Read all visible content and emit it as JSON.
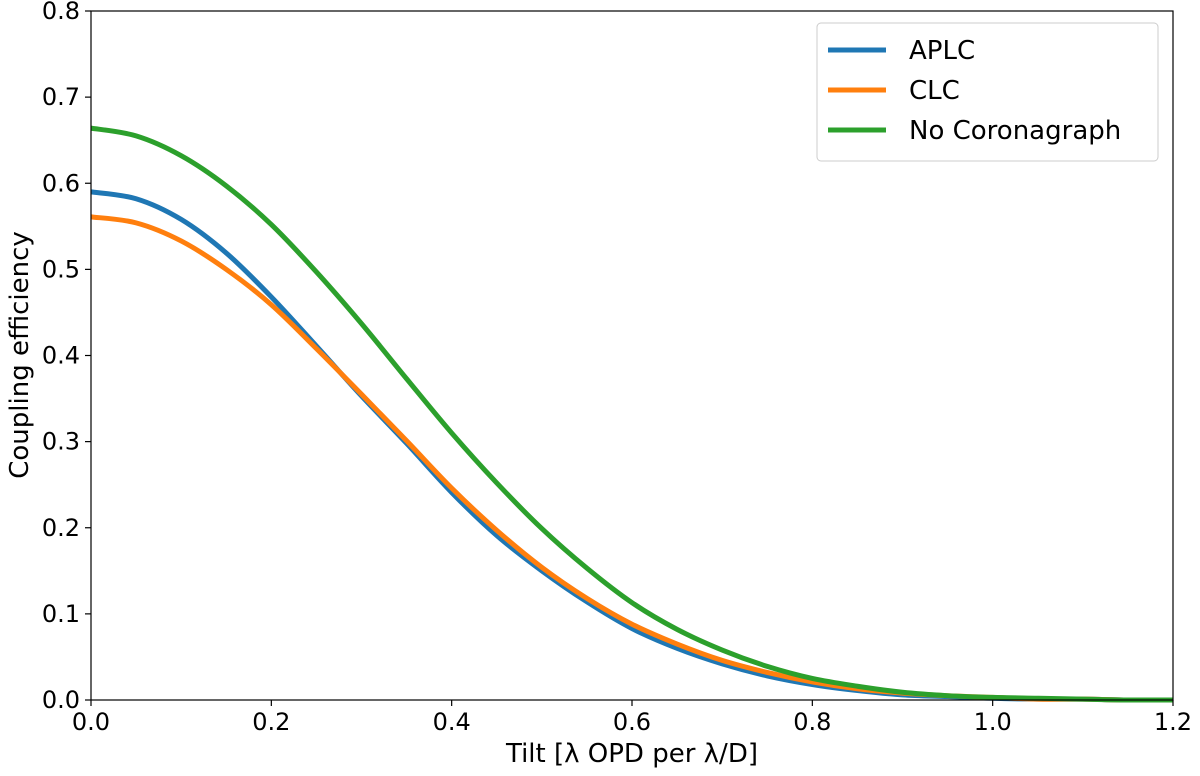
{
  "chart_data": {
    "type": "line",
    "title": "",
    "xlabel": "Tilt [λ OPD per λ/D]",
    "ylabel": "Coupling efficiency",
    "xlim": [
      0.0,
      1.2
    ],
    "ylim": [
      0.0,
      0.8
    ],
    "xticks": [
      "0.0",
      "0.2",
      "0.4",
      "0.6",
      "0.8",
      "1.0",
      "1.2"
    ],
    "yticks": [
      "0.0",
      "0.1",
      "0.2",
      "0.3",
      "0.4",
      "0.5",
      "0.6",
      "0.7",
      "0.8"
    ],
    "grid": false,
    "legend_position": "top-right",
    "x": [
      0.0,
      0.05,
      0.1,
      0.15,
      0.2,
      0.25,
      0.3,
      0.35,
      0.4,
      0.45,
      0.5,
      0.55,
      0.6,
      0.65,
      0.7,
      0.75,
      0.8,
      0.85,
      0.9,
      0.95,
      1.0,
      1.05,
      1.1,
      1.15,
      1.2
    ],
    "series": [
      {
        "name": "APLC",
        "color": "#1f77b4",
        "values": [
          0.59,
          0.582,
          0.558,
          0.519,
          0.468,
          0.411,
          0.353,
          0.298,
          0.241,
          0.191,
          0.15,
          0.114,
          0.083,
          0.06,
          0.042,
          0.028,
          0.018,
          0.011,
          0.006,
          0.004,
          0.002,
          0.001,
          0.001,
          0.0,
          0.0
        ]
      },
      {
        "name": "CLC",
        "color": "#ff7f0e",
        "values": [
          0.561,
          0.554,
          0.533,
          0.5,
          0.459,
          0.408,
          0.355,
          0.301,
          0.246,
          0.197,
          0.154,
          0.118,
          0.088,
          0.065,
          0.046,
          0.032,
          0.021,
          0.013,
          0.008,
          0.005,
          0.003,
          0.001,
          0.001,
          0.0,
          0.0
        ]
      },
      {
        "name": "No Coronagraph",
        "color": "#2ca02c",
        "values": [
          0.664,
          0.655,
          0.632,
          0.597,
          0.552,
          0.497,
          0.437,
          0.373,
          0.31,
          0.252,
          0.199,
          0.153,
          0.113,
          0.082,
          0.058,
          0.039,
          0.025,
          0.016,
          0.009,
          0.005,
          0.003,
          0.002,
          0.001,
          0.0,
          0.0
        ]
      }
    ]
  }
}
